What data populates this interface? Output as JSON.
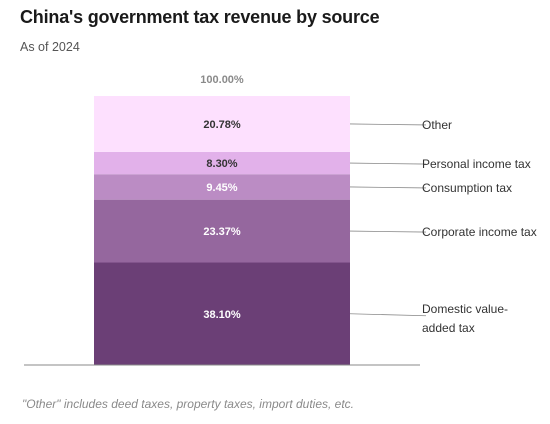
{
  "title": "China's government tax revenue by source",
  "subtitle": "As of 2024",
  "note": "\"Other\" includes deed taxes, property taxes, import duties, etc.",
  "chart_data": {
    "type": "bar",
    "stacked": true,
    "total_label": "100.00%",
    "ylim": [
      0,
      100
    ],
    "grid": false,
    "legend": "right, leader-line labels",
    "series": [
      {
        "name": "Domestic value-added tax",
        "label_lines": [
          "Domestic value-",
          "added tax"
        ],
        "value": 38.1,
        "value_label": "38.10%",
        "color": "#6b3f76"
      },
      {
        "name": "Corporate income tax",
        "label_lines": [
          "Corporate income tax"
        ],
        "value": 23.37,
        "value_label": "23.37%",
        "color": "#95679e"
      },
      {
        "name": "Consumption tax",
        "label_lines": [
          "Consumption tax"
        ],
        "value": 9.45,
        "value_label": "9.45%",
        "color": "#bb8cc4"
      },
      {
        "name": "Personal income tax",
        "label_lines": [
          "Personal income tax"
        ],
        "value": 8.3,
        "value_label": "8.30%",
        "color": "#e2b1ea"
      },
      {
        "name": "Other",
        "label_lines": [
          "Other"
        ],
        "value": 20.78,
        "value_label": "20.78%",
        "color": "#fde0fe"
      }
    ]
  }
}
